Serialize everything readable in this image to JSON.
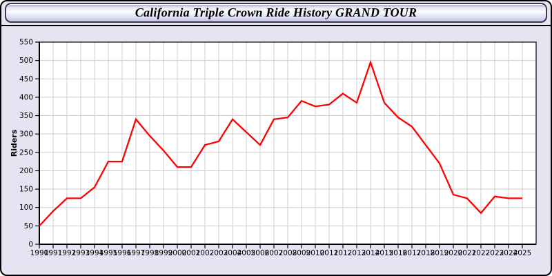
{
  "window": {
    "title": "California Triple Crown Ride History GRAND TOUR"
  },
  "chart_data": {
    "type": "line",
    "title": "California Triple Crown Ride History GRAND TOUR",
    "xlabel": "",
    "ylabel": "Riders",
    "x": [
      1990,
      1991,
      1992,
      1993,
      1994,
      1995,
      1996,
      1997,
      1998,
      1999,
      2000,
      2001,
      2002,
      2003,
      2004,
      2005,
      2006,
      2007,
      2008,
      2009,
      2010,
      2011,
      2012,
      2013,
      2014,
      2015,
      2016,
      2017,
      2018,
      2019,
      2020,
      2021,
      2022,
      2023,
      2024,
      2025
    ],
    "series": [
      {
        "name": "Riders",
        "values": [
          50,
          90,
          125,
          125,
          155,
          225,
          225,
          340,
          295,
          255,
          210,
          210,
          270,
          280,
          340,
          305,
          270,
          340,
          345,
          390,
          375,
          380,
          410,
          385,
          495,
          385,
          345,
          320,
          270,
          220,
          135,
          125,
          85,
          130,
          125,
          125
        ]
      }
    ],
    "ylim": [
      0,
      550
    ],
    "ytick_step": 50,
    "grid": true,
    "legend_position": "none",
    "colors": {
      "line": "#ff0000",
      "plot_bg": "#ffffff",
      "page_bg": "#e4e4f2",
      "grid": "#cccccc",
      "axis": "#000000",
      "title_bar_border": "#3c3c4e"
    }
  }
}
